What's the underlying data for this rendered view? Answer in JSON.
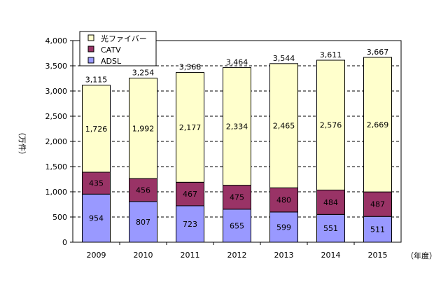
{
  "chart_data": {
    "type": "bar",
    "stacked": true,
    "categories": [
      "2009",
      "2010",
      "2011",
      "2012",
      "2013",
      "2014",
      "2015"
    ],
    "series": [
      {
        "name": "ADSL",
        "color": "#9999FF",
        "values": [
          954,
          807,
          723,
          655,
          599,
          551,
          511
        ]
      },
      {
        "name": "CATV",
        "color": "#993366",
        "values": [
          435,
          456,
          467,
          475,
          480,
          484,
          487
        ]
      },
      {
        "name": "光ファイバー",
        "color": "#FFFFCC",
        "values": [
          1726,
          1992,
          2177,
          2334,
          2465,
          2576,
          2669
        ]
      }
    ],
    "totals": [
      "3,115",
      "3,254",
      "3,368",
      "3,464",
      "3,544",
      "3,611",
      "3,667"
    ],
    "ylabel": "（万件）",
    "xlabel": "（年度）",
    "ylim": [
      0,
      4000
    ],
    "yticks": [
      "0",
      "500",
      "1,000",
      "1,500",
      "2,000",
      "2,500",
      "3,000",
      "3,500",
      "4,000"
    ],
    "grid": "dashed horizontal",
    "legend": {
      "placement": "top-left",
      "order": [
        "光ファイバー",
        "CATV",
        "ADSL"
      ]
    }
  }
}
